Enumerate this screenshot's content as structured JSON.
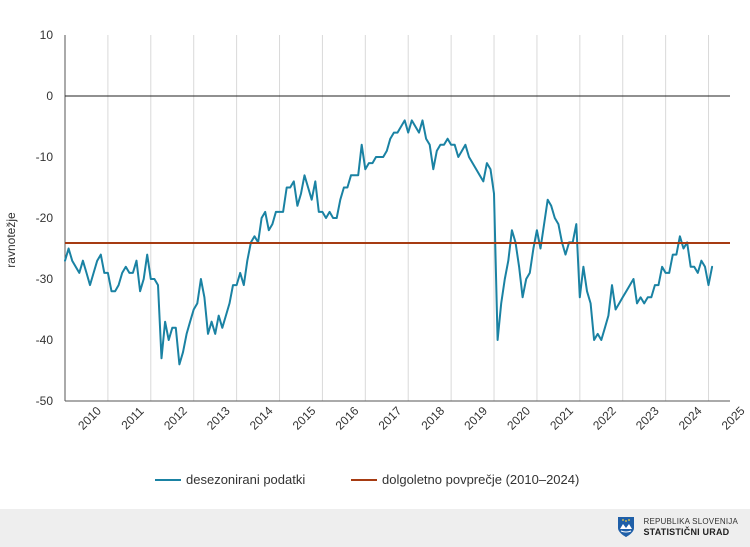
{
  "chart_data": {
    "type": "line",
    "ylabel": "ravnotežje",
    "ylim": [
      -50,
      10
    ],
    "yticks": [
      10,
      0,
      -10,
      -20,
      -30,
      -40,
      -50
    ],
    "xlim": [
      2010,
      2025.5
    ],
    "xticks": [
      "2010",
      "2011",
      "2012",
      "2013",
      "2014",
      "2015",
      "2016",
      "2017",
      "2018",
      "2019",
      "2020",
      "2021",
      "2022",
      "2023",
      "2024",
      "2025"
    ],
    "grid": "vertical",
    "legend_position": "bottom",
    "series": [
      {
        "name": "desezonirani podatki",
        "color": "#1a82a3",
        "values": [
          -27,
          -25,
          -27,
          -28,
          -29,
          -27,
          -29,
          -31,
          -29,
          -27,
          -26,
          -29,
          -29,
          -32,
          -32,
          -31,
          -29,
          -28,
          -29,
          -29,
          -27,
          -32,
          -30,
          -26,
          -30,
          -30,
          -31,
          -43,
          -37,
          -40,
          -38,
          -38,
          -44,
          -42,
          -39,
          -37,
          -35,
          -34,
          -30,
          -33,
          -39,
          -37,
          -39,
          -36,
          -38,
          -36,
          -34,
          -31,
          -31,
          -29,
          -31,
          -27,
          -24,
          -23,
          -24,
          -20,
          -19,
          -22,
          -21,
          -19,
          -19,
          -19,
          -15,
          -15,
          -14,
          -18,
          -16,
          -13,
          -15,
          -17,
          -14,
          -19,
          -19,
          -20,
          -19,
          -20,
          -20,
          -17,
          -15,
          -15,
          -13,
          -13,
          -13,
          -8,
          -12,
          -11,
          -11,
          -10,
          -10,
          -10,
          -9,
          -7,
          -6,
          -6,
          -5,
          -4,
          -6,
          -4,
          -5,
          -6,
          -4,
          -7,
          -8,
          -12,
          -9,
          -8,
          -8,
          -7,
          -8,
          -8,
          -10,
          -9,
          -8,
          -10,
          -11,
          -12,
          -13,
          -14,
          -11,
          -12,
          -16,
          -40,
          -34,
          -30,
          -27,
          -22,
          -24,
          -28,
          -33,
          -30,
          -29,
          -25,
          -22,
          -25,
          -21,
          -17,
          -18,
          -20,
          -21,
          -24,
          -26,
          -24,
          -24,
          -21,
          -33,
          -28,
          -32,
          -34,
          -40,
          -39,
          -40,
          -38,
          -36,
          -31,
          -35,
          -34,
          -33,
          -32,
          -31,
          -30,
          -34,
          -33,
          -34,
          -33,
          -33,
          -31,
          -31,
          -28,
          -29,
          -29,
          -26,
          -26,
          -23,
          -25,
          -24,
          -28,
          -28,
          -29,
          -27,
          -28,
          -31,
          -28
        ]
      },
      {
        "name": "dolgoletno povprečje (2010–2024)",
        "color": "#a63b12",
        "values": [
          -24.1,
          -24.1
        ]
      }
    ]
  },
  "footer": {
    "logo_line1": "REPUBLIKA SLOVENIJA",
    "logo_line2": "STATISTIČNI URAD"
  }
}
